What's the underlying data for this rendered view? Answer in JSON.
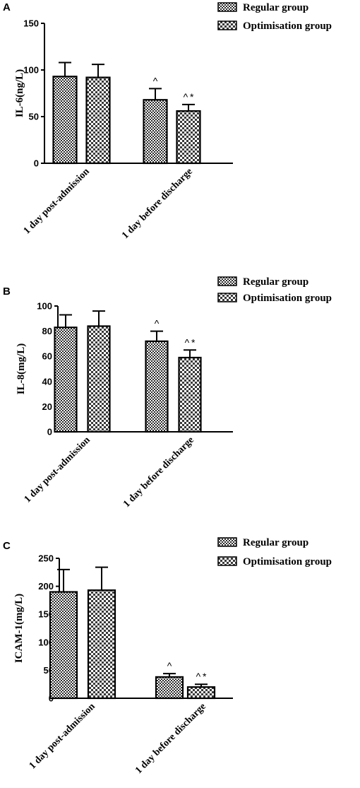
{
  "chart_data": [
    {
      "type": "bar",
      "panel_label": "A",
      "ylabel": "IL-6(ng/L)",
      "ylim": [
        0,
        150
      ],
      "yticks": [
        0,
        50,
        100,
        150
      ],
      "categories": [
        "1 day post-admission",
        "1 day before discharge"
      ],
      "series": [
        {
          "name": "Regular group",
          "values": [
            93,
            68
          ],
          "errors": [
            15,
            12
          ],
          "annotations": [
            "",
            "^"
          ]
        },
        {
          "name": "Optimisation group",
          "values": [
            92,
            56
          ],
          "errors": [
            14,
            7
          ],
          "annotations": [
            "",
            "^*"
          ]
        }
      ],
      "legend_position": "top-right"
    },
    {
      "type": "bar",
      "panel_label": "B",
      "ylabel": "IL-8(mg/L)",
      "ylim": [
        0,
        100
      ],
      "yticks": [
        0,
        20,
        40,
        60,
        80,
        100
      ],
      "categories": [
        "1 day post-admission",
        "1 day before discharge"
      ],
      "series": [
        {
          "name": "Regular group",
          "values": [
            83,
            72
          ],
          "errors": [
            10,
            8
          ],
          "annotations": [
            "",
            "^"
          ]
        },
        {
          "name": "Optimisation group",
          "values": [
            84,
            59
          ],
          "errors": [
            12,
            6
          ],
          "annotations": [
            "",
            "^*"
          ]
        }
      ],
      "legend_position": "top-right"
    },
    {
      "type": "bar",
      "panel_label": "C",
      "ylabel": "ICAM-1(mg/L)",
      "ylim": [
        0,
        250
      ],
      "yticks": [
        0,
        50,
        100,
        150,
        200,
        250
      ],
      "categories": [
        "1 day post-admission",
        "1 day before discharge"
      ],
      "series": [
        {
          "name": "Regular group",
          "values": [
            190,
            38
          ],
          "errors": [
            40,
            6
          ],
          "annotations": [
            "",
            "^"
          ]
        },
        {
          "name": "Optimisation group",
          "values": [
            193,
            20
          ],
          "errors": [
            41,
            5
          ],
          "annotations": [
            "",
            "^*"
          ]
        }
      ],
      "legend_position": "top-right"
    }
  ]
}
